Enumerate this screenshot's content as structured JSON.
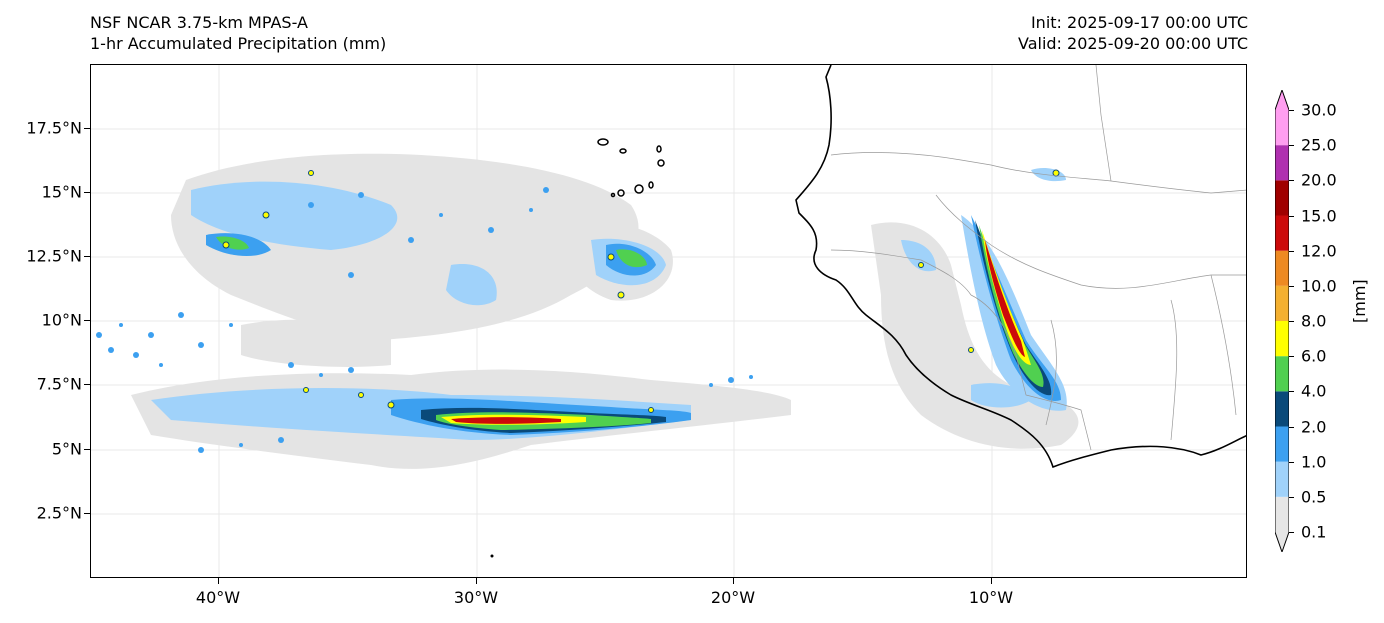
{
  "header": {
    "model": "NSF NCAR 3.75-km MPAS-A",
    "field": "1-hr Accumulated Precipitation (mm)",
    "init": "Init: 2025-09-17 00:00 UTC",
    "valid": "Valid: 2025-09-20 00:00 UTC"
  },
  "axes": {
    "y_labels": [
      "17.5°N",
      "15°N",
      "12.5°N",
      "10°N",
      "7.5°N",
      "5°N",
      "2.5°N"
    ],
    "x_labels": [
      "40°W",
      "30°W",
      "20°W",
      "10°W"
    ]
  },
  "colorbar": {
    "unit": "[mm]",
    "levels": [
      "0.1",
      "0.5",
      "1.0",
      "2.0",
      "4.0",
      "6.0",
      "8.0",
      "10.0",
      "12.0",
      "15.0",
      "20.0",
      "25.0",
      "30.0"
    ],
    "colors": [
      "#e6e6e6",
      "#a0d2fa",
      "#3ca0f0",
      "#0a4a7a",
      "#50d050",
      "#ffff00",
      "#f4b030",
      "#ee8a22",
      "#cc0a0a",
      "#a00000",
      "#b030b0",
      "#ff9ef0"
    ]
  }
}
